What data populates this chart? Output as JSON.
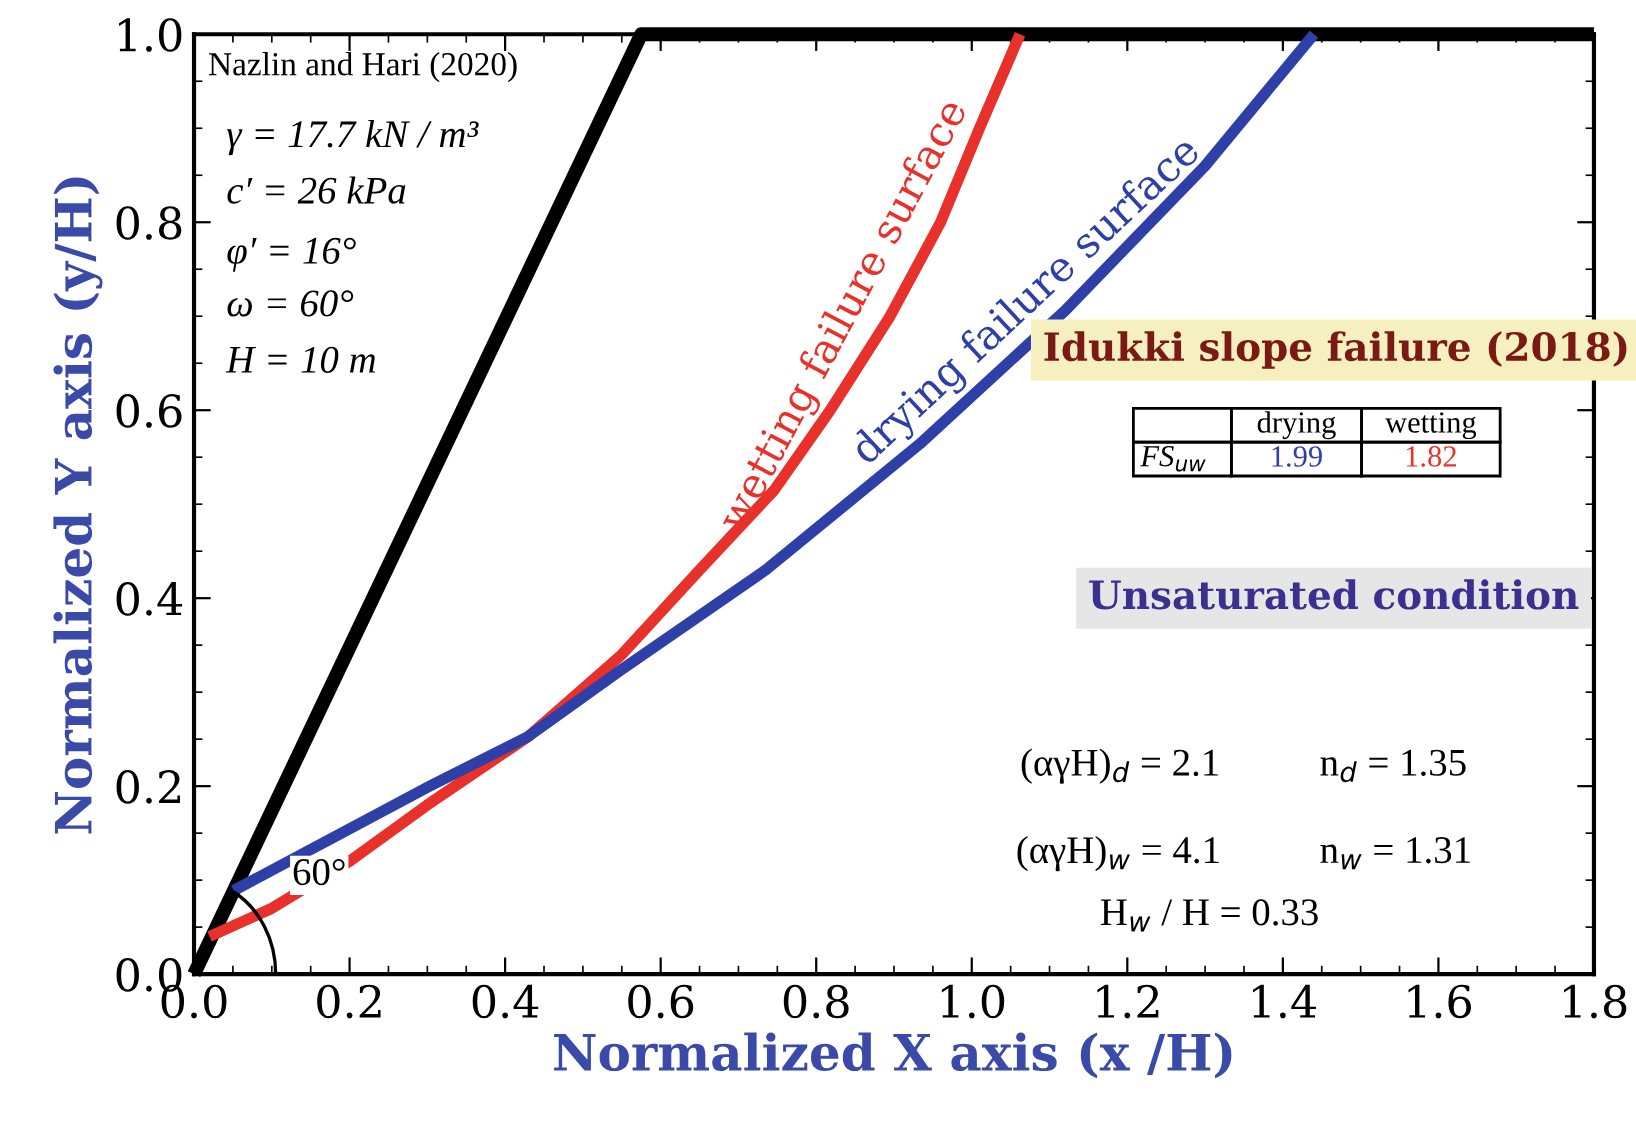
{
  "chart_data": {
    "type": "line",
    "xlabel": "Normalized X axis (x /H)",
    "ylabel": "Normalized Y axis (y/H)",
    "xlim": [
      0,
      1.8
    ],
    "ylim": [
      0,
      1.0
    ],
    "xticks": [
      {
        "value": 0,
        "label": "0.0"
      },
      0.2,
      0.4,
      0.6,
      0.8,
      {
        "value": 1,
        "label": "1.0"
      },
      1.2,
      1.4,
      1.6,
      1.8
    ],
    "yticks": [
      {
        "value": 0,
        "label": "0.0"
      },
      0.2,
      0.4,
      0.6,
      0.8,
      {
        "value": 1,
        "label": "1.0"
      }
    ],
    "grid": false,
    "legend": false,
    "marker": "none",
    "line_style": "solid",
    "series": [
      {
        "color": "#000000",
        "x": [
          0,
          0.575,
          1.8
        ],
        "values": [
          0,
          1.0,
          1.0
        ]
      },
      {
        "name": "wetting failure surface",
        "color": "#e8312a",
        "x": [
          0.02,
          0.1,
          0.2,
          0.3,
          0.43,
          0.55,
          0.65,
          0.746,
          0.818,
          0.895,
          0.96,
          1.01,
          1.062
        ],
        "values": [
          0.04,
          0.07,
          0.12,
          0.18,
          0.253,
          0.34,
          0.43,
          0.515,
          0.6,
          0.7,
          0.8,
          0.9,
          1.0
        ]
      },
      {
        "name": "drying failure surface",
        "color": "#2e40a8",
        "x": [
          0.051,
          0.303,
          0.43,
          0.548,
          0.735,
          0.933,
          1.12,
          1.3,
          1.44
        ],
        "values": [
          0.089,
          0.2,
          0.253,
          0.323,
          0.43,
          0.564,
          0.706,
          0.86,
          1.0
        ]
      }
    ],
    "annotations": [
      "Nazlin and Hari (2020)",
      "γ = 17.7 kN / m³",
      "c′ = 26 kPa",
      "φ′ = 16°",
      "ω = 60°",
      "H = 10 m",
      "Idukki slope failure (2018)",
      "drying",
      "wetting",
      "FS$_{uw}$",
      "1.99",
      "1.82",
      "Unsaturated condition",
      "(αγH)$_{d}$ = 2.1",
      "n$_{d}$ = 1.35",
      "(αγH)$_{w}$ = 4.1",
      "n$_{w}$ = 1.31",
      "H$_{w}$ / H = 0.33",
      "60°"
    ]
  }
}
